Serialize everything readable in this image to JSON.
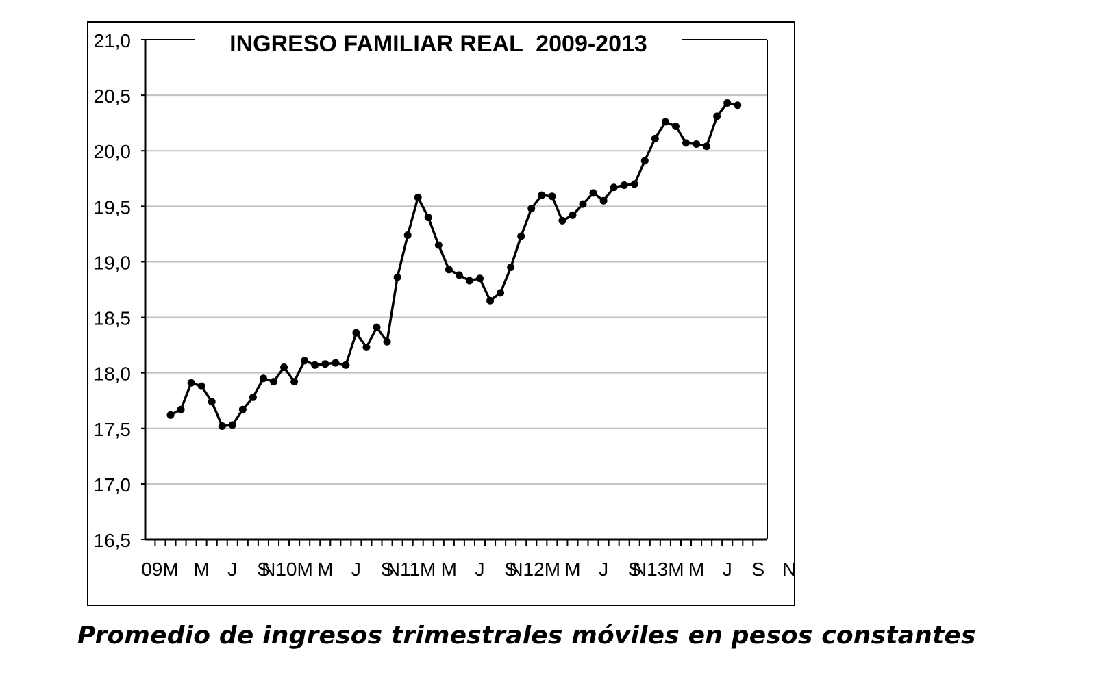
{
  "chart_data": {
    "type": "line",
    "title": "INGRESO FAMILIAR REAL  2009-2013",
    "xlabel": "",
    "ylabel": "",
    "ylim": [
      16.5,
      21.0
    ],
    "y_ticks": [
      "16,5",
      "17,0",
      "17,5",
      "18,0",
      "18,5",
      "19,0",
      "19,5",
      "20,0",
      "20,5",
      "21,0"
    ],
    "x_tick_labels": [
      "09M",
      "M",
      "J",
      "S",
      "N10M",
      "M",
      "J",
      "S",
      "N11M",
      "M",
      "J",
      "S",
      "N12M",
      "M",
      "J",
      "S",
      "N13M",
      "M",
      "J",
      "S",
      "N"
    ],
    "grid": true,
    "legend": "none",
    "series": [
      {
        "values": [
          17.62,
          17.67,
          17.91,
          17.88,
          17.74,
          17.52,
          17.53,
          17.67,
          17.78,
          17.95,
          17.92,
          18.05,
          17.92,
          18.11,
          18.07,
          18.08,
          18.09,
          18.07,
          18.36,
          18.23,
          18.41,
          18.28,
          18.86,
          19.24,
          19.58,
          19.4,
          19.15,
          18.93,
          18.88,
          18.83,
          18.85,
          18.65,
          18.72,
          18.95,
          19.23,
          19.48,
          19.6,
          19.59,
          19.37,
          19.42,
          19.52,
          19.62,
          19.55,
          19.67,
          19.69,
          19.7,
          19.91,
          20.11,
          20.26,
          20.22,
          20.07,
          20.06,
          20.04,
          20.31,
          20.43,
          20.41
        ]
      }
    ],
    "line_color": "#000000",
    "grid_color": "#c0c0c0"
  },
  "caption": "Promedio de ingresos trimestrales móviles en pesos constantes"
}
